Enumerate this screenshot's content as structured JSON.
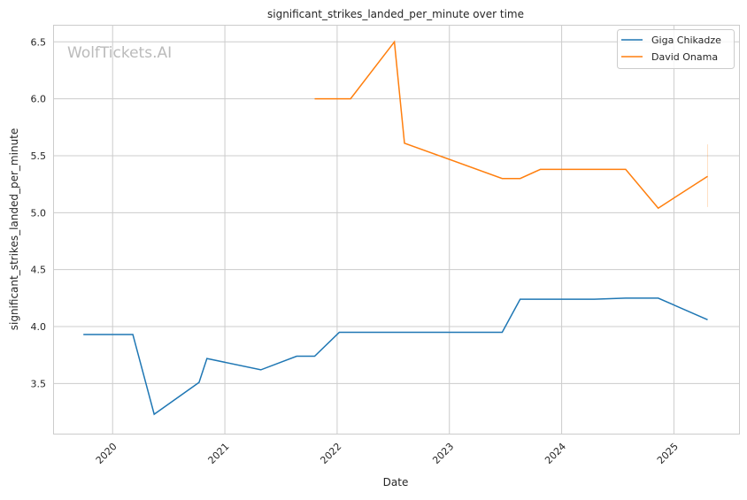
{
  "chart_data": {
    "type": "line",
    "title": "significant_strikes_landed_per_minute over time",
    "xlabel": "Date",
    "ylabel": "significant_strikes_landed_per_minute",
    "watermark": "WolfTickets.AI",
    "xlim": [
      2019.47,
      2025.58
    ],
    "ylim": [
      3.06,
      6.65
    ],
    "xticks": [
      2020,
      2021,
      2022,
      2023,
      2024,
      2025
    ],
    "xtick_labels": [
      "2020",
      "2021",
      "2022",
      "2023",
      "2024",
      "2025"
    ],
    "yticks": [
      3.5,
      4.0,
      4.5,
      5.0,
      5.5,
      6.0,
      6.5
    ],
    "ytick_labels": [
      "3.5",
      "4.0",
      "4.5",
      "5.0",
      "5.5",
      "6.0",
      "6.5"
    ],
    "grid": true,
    "legend_position": "top-right",
    "series": [
      {
        "name": "Giga Chikadze",
        "color": "#1f77b4",
        "x": [
          2019.74,
          2020.18,
          2020.37,
          2020.77,
          2020.84,
          2021.32,
          2021.64,
          2021.8,
          2022.02,
          2023.47,
          2023.63,
          2024.29,
          2024.57,
          2024.86,
          2025.3
        ],
        "y": [
          3.93,
          3.93,
          3.23,
          3.51,
          3.72,
          3.62,
          3.74,
          3.74,
          3.95,
          3.95,
          4.24,
          4.24,
          4.25,
          4.25,
          4.06
        ]
      },
      {
        "name": "David Onama",
        "color": "#ff7f0e",
        "x": [
          2021.8,
          2022.12,
          2022.51,
          2022.6,
          2023.47,
          2023.63,
          2023.81,
          2024.57,
          2024.86,
          2025.3
        ],
        "y": [
          6.0,
          6.0,
          6.5,
          5.61,
          5.3,
          5.3,
          5.38,
          5.38,
          5.04,
          5.32
        ],
        "band": {
          "x": 2025.3,
          "y": [
            5.05,
            5.6
          ]
        }
      }
    ]
  }
}
